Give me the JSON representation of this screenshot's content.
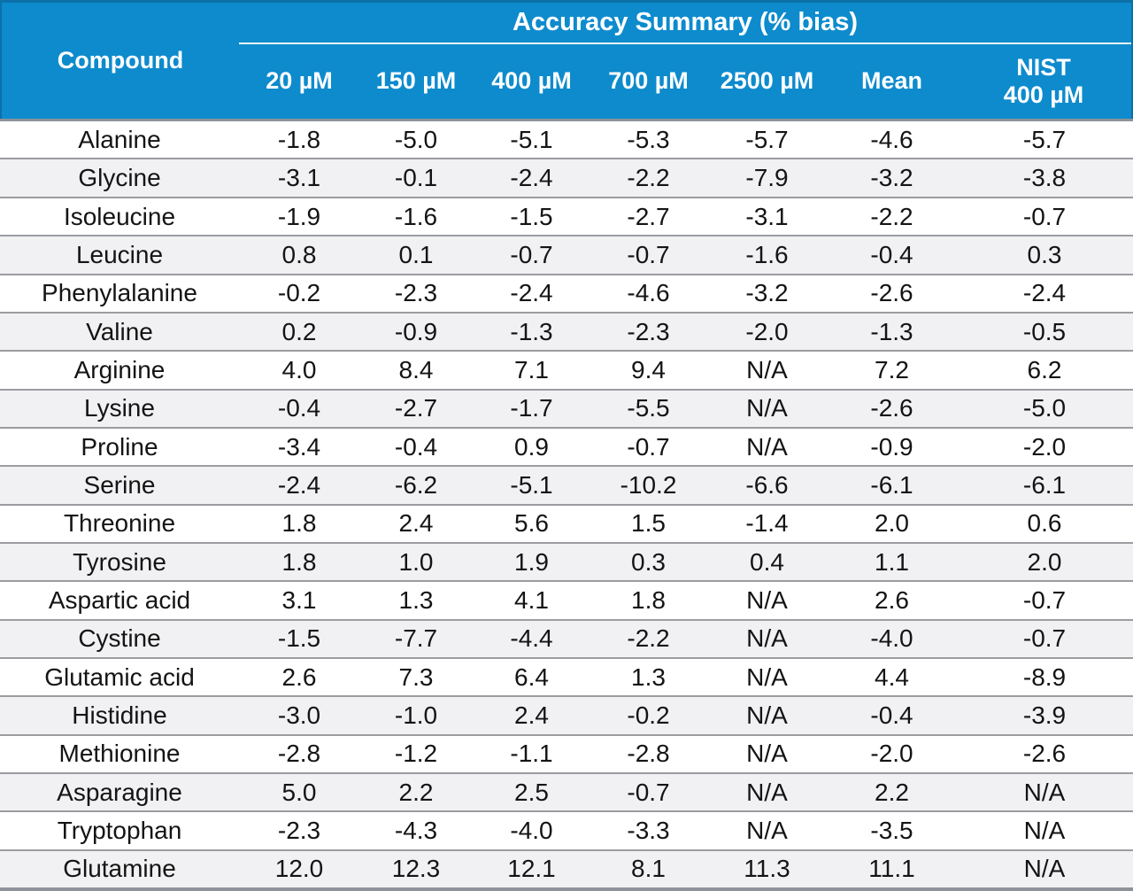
{
  "chart_data": {
    "type": "table",
    "title": "Accuracy Summary (% bias)",
    "corner_header": "Compound",
    "columns": [
      "20 µM",
      "150 µM",
      "400 µM",
      "700 µM",
      "2500 µM",
      "Mean",
      "NIST 400 µM"
    ],
    "nist_column": {
      "line1": "NIST",
      "line2": "400 µM"
    },
    "rows": [
      {
        "compound": "Alanine",
        "values": [
          "-1.8",
          "-5.0",
          "-5.1",
          "-5.3",
          "-5.7",
          "-4.6",
          "-5.7"
        ]
      },
      {
        "compound": "Glycine",
        "values": [
          "-3.1",
          "-0.1",
          "-2.4",
          "-2.2",
          "-7.9",
          "-3.2",
          "-3.8"
        ]
      },
      {
        "compound": "Isoleucine",
        "values": [
          "-1.9",
          "-1.6",
          "-1.5",
          "-2.7",
          "-3.1",
          "-2.2",
          "-0.7"
        ]
      },
      {
        "compound": "Leucine",
        "values": [
          "0.8",
          "0.1",
          "-0.7",
          "-0.7",
          "-1.6",
          "-0.4",
          "0.3"
        ]
      },
      {
        "compound": "Phenylalanine",
        "values": [
          "-0.2",
          "-2.3",
          "-2.4",
          "-4.6",
          "-3.2",
          "-2.6",
          "-2.4"
        ]
      },
      {
        "compound": "Valine",
        "values": [
          "0.2",
          "-0.9",
          "-1.3",
          "-2.3",
          "-2.0",
          "-1.3",
          "-0.5"
        ]
      },
      {
        "compound": "Arginine",
        "values": [
          "4.0",
          "8.4",
          "7.1",
          "9.4",
          "N/A",
          "7.2",
          "6.2"
        ]
      },
      {
        "compound": "Lysine",
        "values": [
          "-0.4",
          "-2.7",
          "-1.7",
          "-5.5",
          "N/A",
          "-2.6",
          "-5.0"
        ]
      },
      {
        "compound": "Proline",
        "values": [
          "-3.4",
          "-0.4",
          "0.9",
          "-0.7",
          "N/A",
          "-0.9",
          "-2.0"
        ]
      },
      {
        "compound": "Serine",
        "values": [
          "-2.4",
          "-6.2",
          "-5.1",
          "-10.2",
          "-6.6",
          "-6.1",
          "-6.1"
        ]
      },
      {
        "compound": "Threonine",
        "values": [
          "1.8",
          "2.4",
          "5.6",
          "1.5",
          "-1.4",
          "2.0",
          "0.6"
        ]
      },
      {
        "compound": "Tyrosine",
        "values": [
          "1.8",
          "1.0",
          "1.9",
          "0.3",
          "0.4",
          "1.1",
          "2.0"
        ]
      },
      {
        "compound": "Aspartic acid",
        "values": [
          "3.1",
          "1.3",
          "4.1",
          "1.8",
          "N/A",
          "2.6",
          "-0.7"
        ]
      },
      {
        "compound": "Cystine",
        "values": [
          "-1.5",
          "-7.7",
          "-4.4",
          "-2.2",
          "N/A",
          "-4.0",
          "-0.7"
        ]
      },
      {
        "compound": "Glutamic acid",
        "values": [
          "2.6",
          "7.3",
          "6.4",
          "1.3",
          "N/A",
          "4.4",
          "-8.9"
        ]
      },
      {
        "compound": "Histidine",
        "values": [
          "-3.0",
          "-1.0",
          "2.4",
          "-0.2",
          "N/A",
          "-0.4",
          "-3.9"
        ]
      },
      {
        "compound": "Methionine",
        "values": [
          "-2.8",
          "-1.2",
          "-1.1",
          "-2.8",
          "N/A",
          "-2.0",
          "-2.6"
        ]
      },
      {
        "compound": "Asparagine",
        "values": [
          "5.0",
          "2.2",
          "2.5",
          "-0.7",
          "N/A",
          "2.2",
          "N/A"
        ]
      },
      {
        "compound": "Tryptophan",
        "values": [
          "-2.3",
          "-4.3",
          "-4.0",
          "-3.3",
          "N/A",
          "-3.5",
          "N/A"
        ]
      },
      {
        "compound": "Glutamine",
        "values": [
          "12.0",
          "12.3",
          "12.1",
          "8.1",
          "11.3",
          "11.1",
          "N/A"
        ]
      }
    ],
    "colors": {
      "header_bg": "#0d8bcd",
      "header_border": "#0c70a8",
      "header_text": "#ffffff",
      "row_alt_bg": "#f1f1f3",
      "row_separator": "#9a9ca0",
      "bottom_border": "#8e939a",
      "body_text": "#141414"
    },
    "layout": {
      "grid": "row-separators-only",
      "legend": "none"
    }
  }
}
